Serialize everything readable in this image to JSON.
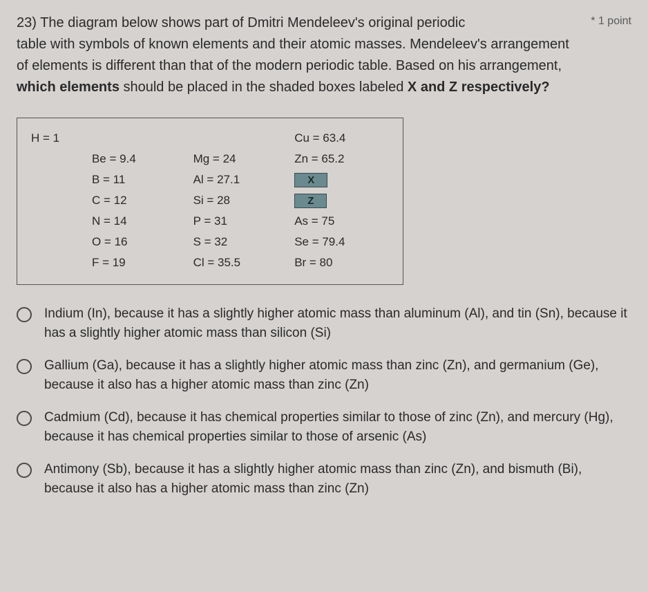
{
  "question": {
    "number": "23)",
    "points_label": "* 1 point",
    "prompt_line1": "The diagram below shows part of Dmitri Mendeleev's original periodic",
    "prompt_rest": "table with symbols of known elements and their atomic masses. Mendeleev's arrangement of elements is different than that of the modern periodic table. Based on his arrangement, ",
    "bold_part": "which elements",
    "prompt_tail": " should be placed in the shaded boxes labeled ",
    "bold_xz": "X and Z respectively?"
  },
  "table": {
    "border_color": "#555555",
    "background": "#d5d2d0",
    "shaded_bg": "#6b8a8f",
    "rows": [
      {
        "a": "H = 1",
        "b": "",
        "c": "",
        "d": "Cu = 63.4",
        "d_shaded": false
      },
      {
        "a": "",
        "b": "Be = 9.4",
        "c": "Mg = 24",
        "d": "Zn = 65.2",
        "d_shaded": false
      },
      {
        "a": "",
        "b": "B = 11",
        "c": "Al = 27.1",
        "d": "X",
        "d_shaded": true
      },
      {
        "a": "",
        "b": "C = 12",
        "c": "Si = 28",
        "d": "Z",
        "d_shaded": true
      },
      {
        "a": "",
        "b": "N = 14",
        "c": "P = 31",
        "d": "As = 75",
        "d_shaded": false
      },
      {
        "a": "",
        "b": "O = 16",
        "c": "S = 32",
        "d": "Se = 79.4",
        "d_shaded": false
      },
      {
        "a": "",
        "b": "F = 19",
        "c": "Cl = 35.5",
        "d": "Br = 80",
        "d_shaded": false
      }
    ]
  },
  "options": [
    "Indium (In), because it has a slightly higher atomic mass than aluminum (Al), and tin (Sn), because it has a slightly higher atomic mass than silicon (Si)",
    "Gallium (Ga), because it has a slightly higher atomic mass than zinc (Zn), and germanium (Ge), because it also has a higher atomic mass than zinc (Zn)",
    "Cadmium (Cd), because it has chemical properties similar to those of zinc (Zn), and mercury (Hg), because it has chemical properties similar to those of arsenic (As)",
    "Antimony (Sb), because it has a slightly higher atomic mass than zinc (Zn), and bismuth (Bi), because it also has a higher atomic mass than zinc (Zn)"
  ]
}
